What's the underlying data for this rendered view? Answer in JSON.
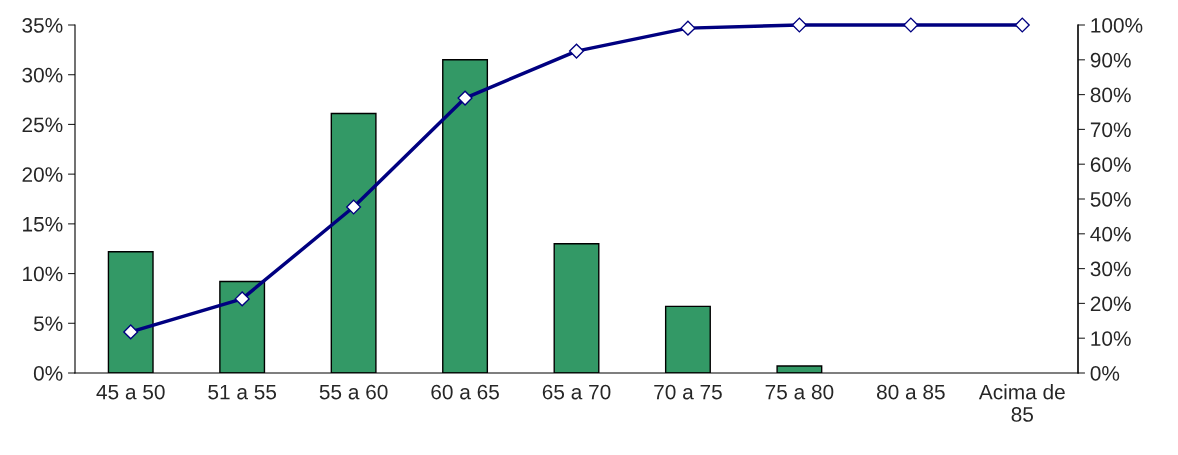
{
  "chart_data": {
    "type": "bar",
    "categories": [
      "45 a 50",
      "51 a 55",
      "55 a 60",
      "60 a 65",
      "65 a 70",
      "70 a 75",
      "75 a 80",
      "80 a 85",
      "Acima de 85"
    ],
    "series": [
      {
        "color": "#339966",
        "values": [
          12.2,
          9.2,
          26.1,
          31.5,
          13.0,
          6.7,
          0.7,
          0,
          0
        ]
      },
      {
        "type": "line",
        "axis": "y2",
        "color": "#000080",
        "marker": "diamond",
        "line_style": "solid",
        "values": [
          11.8,
          21.3,
          47.7,
          79.0,
          92.5,
          99.1,
          100,
          100,
          100
        ]
      }
    ],
    "ylim": [
      0,
      35
    ],
    "yticks": [
      {
        "value": 0,
        "label": "0%"
      },
      {
        "value": 5,
        "label": "5%"
      },
      {
        "value": 10,
        "label": "10%"
      },
      {
        "value": 15,
        "label": "15%"
      },
      {
        "value": 20,
        "label": "20%"
      },
      {
        "value": 25,
        "label": "25%"
      },
      {
        "value": 30,
        "label": "30%"
      },
      {
        "value": 35,
        "label": "35%"
      }
    ],
    "y2lim": [
      0,
      100
    ],
    "y2ticks": [
      {
        "value": 0,
        "label": "0%"
      },
      {
        "value": 10,
        "label": "10%"
      },
      {
        "value": 20,
        "label": "20%"
      },
      {
        "value": 30,
        "label": "30%"
      },
      {
        "value": 40,
        "label": "40%"
      },
      {
        "value": 50,
        "label": "50%"
      },
      {
        "value": 60,
        "label": "60%"
      },
      {
        "value": 70,
        "label": "70%"
      },
      {
        "value": 80,
        "label": "80%"
      },
      {
        "value": 90,
        "label": "90%"
      },
      {
        "value": 100,
        "label": "100%"
      }
    ],
    "grid": false,
    "legend": false
  }
}
